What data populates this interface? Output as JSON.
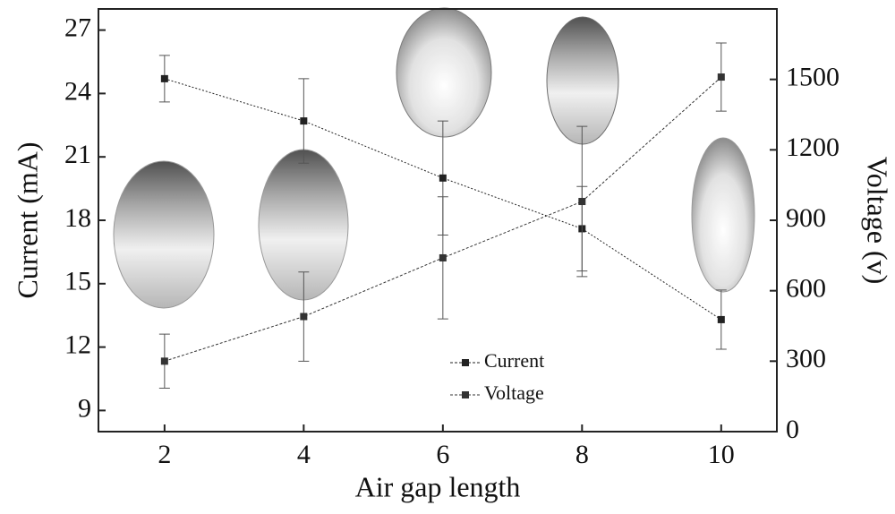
{
  "chart_data": {
    "type": "line",
    "x_label": "Air gap length",
    "y_label": "Current (mA)",
    "y2_label": "Voltage (v)",
    "x": [
      2,
      4,
      6,
      8,
      10
    ],
    "xlim": [
      1.05,
      10.8
    ],
    "xticks": [
      2,
      4,
      6,
      8,
      10
    ],
    "ylim": [
      8,
      28
    ],
    "yticks": [
      9,
      12,
      15,
      18,
      21,
      24,
      27
    ],
    "y2lim": [
      0,
      1800
    ],
    "y2ticks": [
      0,
      300,
      600,
      900,
      1200,
      1500
    ],
    "series": [
      {
        "name": "Current",
        "color": "#222222",
        "values": [
          24.7,
          22.7,
          20.0,
          17.6,
          13.3
        ],
        "errors": [
          1.1,
          2.0,
          2.7,
          2.0,
          1.4
        ]
      },
      {
        "name": "Voltage",
        "color": "#333333",
        "axis": "y2",
        "values": [
          300,
          490,
          740,
          980,
          1510
        ],
        "errors": [
          115,
          190,
          260,
          320,
          145
        ]
      }
    ]
  }
}
